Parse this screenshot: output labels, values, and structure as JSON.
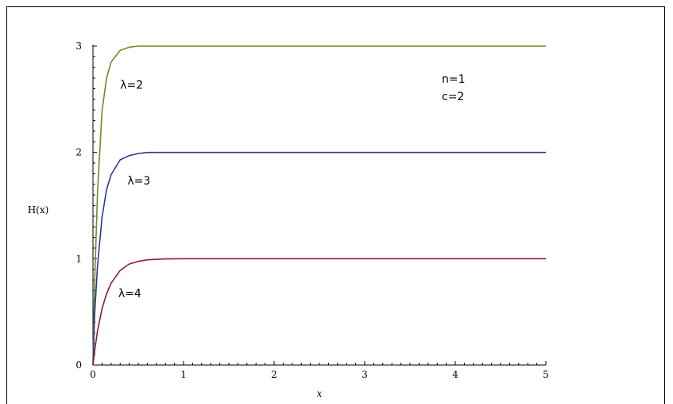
{
  "chart_data": {
    "type": "line",
    "title": "",
    "xlabel": "x",
    "ylabel": "H(x)",
    "xlim": [
      0,
      5
    ],
    "ylim": [
      0,
      3
    ],
    "xticks": [
      "0",
      "1",
      "2",
      "3",
      "4",
      "5"
    ],
    "yticks": [
      "0",
      "1",
      "2",
      "3"
    ],
    "grid": false,
    "annotations": [
      "n=1",
      "c=2"
    ],
    "series": [
      {
        "name": "λ=2",
        "color": "#6b8e23",
        "x": [
          0,
          0.02,
          0.05,
          0.1,
          0.15,
          0.2,
          0.3,
          0.4,
          0.5,
          0.6,
          0.8,
          1,
          1.5,
          2,
          3,
          4,
          5
        ],
        "y": [
          0,
          0.81,
          1.62,
          2.39,
          2.7,
          2.85,
          2.96,
          2.99,
          3.0,
          3.0,
          3.0,
          3.0,
          3.0,
          3.0,
          3.0,
          3.0,
          3.0
        ]
      },
      {
        "name": "λ=3",
        "color": "#2b3a8f",
        "x": [
          0,
          0.02,
          0.05,
          0.1,
          0.15,
          0.2,
          0.3,
          0.4,
          0.5,
          0.6,
          0.8,
          1,
          1.5,
          2,
          3,
          4,
          5
        ],
        "y": [
          0,
          0.5,
          0.93,
          1.39,
          1.65,
          1.79,
          1.93,
          1.97,
          1.99,
          2.0,
          2.0,
          2.0,
          2.0,
          2.0,
          2.0,
          2.0,
          2.0
        ]
      },
      {
        "name": "λ=4",
        "color": "#8b1e2e",
        "x": [
          0,
          0.02,
          0.05,
          0.1,
          0.15,
          0.2,
          0.3,
          0.4,
          0.5,
          0.6,
          0.8,
          1,
          1.5,
          2,
          3,
          4,
          5
        ],
        "y": [
          0,
          0.14,
          0.32,
          0.53,
          0.67,
          0.77,
          0.89,
          0.95,
          0.975,
          0.99,
          0.998,
          1.0,
          1.0,
          1.0,
          1.0,
          1.0,
          1.0
        ]
      }
    ]
  }
}
